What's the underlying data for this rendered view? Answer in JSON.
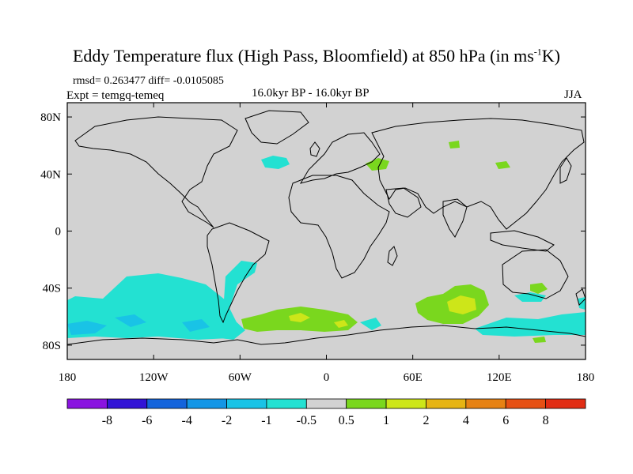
{
  "header": {
    "title_main": "Eddy Temperature flux (High Pass, Bloomfield) at 850 hPa (in ms",
    "title_sup": "-1",
    "title_end": "K)",
    "stats": "rmsd= 0.263477  diff= -0.0105085",
    "expt": "Expt = temgq-temeq",
    "period": "16.0kyr BP - 16.0kyr BP",
    "season": "JJA"
  },
  "axes": {
    "lat_labels": [
      "80N",
      "40N",
      "0",
      "40S",
      "80S"
    ],
    "lon_labels": [
      "180",
      "120W",
      "60W",
      "0",
      "60E",
      "120E",
      "180"
    ]
  },
  "colorbar": {
    "labels": [
      "-8",
      "-6",
      "-4",
      "-2",
      "-1",
      "-0.5",
      "0.5",
      "1",
      "2",
      "4",
      "6",
      "8"
    ],
    "colors": [
      "#8a14e0",
      "#3214d6",
      "#1464dc",
      "#1496e6",
      "#19c3e6",
      "#23e1d2",
      "#d2d2d2",
      "#7ad71e",
      "#cde619",
      "#e6b414",
      "#e68214",
      "#e65014",
      "#e12d14"
    ]
  },
  "map": {
    "background": "#d2d2d2"
  }
}
